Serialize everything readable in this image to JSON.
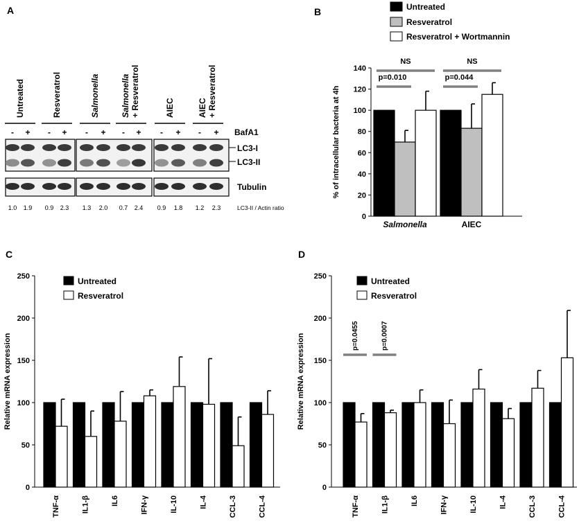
{
  "panel_a": {
    "letter": "A",
    "lanes": [
      "Untreated",
      "Resveratrol",
      "Salmonella",
      "Salmonella|+ Resveratrol",
      "AIEC",
      "AIEC|+ Resveratrol"
    ],
    "bafa1_label": "BafA1",
    "minus": "-",
    "plus": "+",
    "band_labels": [
      "LC3-I",
      "LC3-II"
    ],
    "tubulin_label": "Tubulin",
    "ratios": [
      "1.0",
      "1.9",
      "0.9",
      "2.3",
      "1.3",
      "2.0",
      "0.7",
      "2.4",
      "0.9",
      "1.8",
      "1.2",
      "2.3"
    ],
    "ratio_label": "LC3-II / Actin ratio"
  },
  "chart_data": [
    {
      "id": "B",
      "type": "bar",
      "title": "",
      "ylabel": "% of intracellular bacteria at 4h",
      "xlabel": "",
      "ylim": [
        0,
        140
      ],
      "yticks": [
        0,
        20,
        40,
        60,
        80,
        100,
        120,
        140
      ],
      "categories": [
        "Salmonella",
        "AIEC"
      ],
      "series": [
        {
          "name": "Untreated",
          "color": "#000000",
          "values": [
            100,
            100
          ],
          "errors": [
            0,
            0
          ]
        },
        {
          "name": "Resveratrol",
          "color": "#bfbfbf",
          "values": [
            70,
            83
          ],
          "errors": [
            11,
            23
          ]
        },
        {
          "name": "Resveratrol + Wortmannin",
          "color": "#ffffff",
          "values": [
            100,
            115
          ],
          "errors": [
            18,
            11
          ]
        }
      ],
      "annotations": [
        {
          "group": 0,
          "from": 0,
          "to": 2,
          "text": "NS"
        },
        {
          "group": 0,
          "from": 0,
          "to": 1,
          "text": "p=0.010"
        },
        {
          "group": 1,
          "from": 0,
          "to": 2,
          "text": "NS"
        },
        {
          "group": 1,
          "from": 0,
          "to": 1,
          "text": "p=0.044"
        }
      ]
    },
    {
      "id": "C",
      "type": "bar",
      "title": "",
      "ylabel": "Relative mRNA expression",
      "xlabel": "",
      "ylim": [
        0,
        250
      ],
      "yticks": [
        0,
        50,
        100,
        150,
        200,
        250
      ],
      "categories": [
        "TNF-α",
        "IL1-β",
        "IL6",
        "IFN-γ",
        "IL-10",
        "IL-4",
        "CCL-3",
        "CCL-4"
      ],
      "series": [
        {
          "name": "Untreated",
          "color": "#000000",
          "values": [
            100,
            100,
            100,
            100,
            100,
            100,
            100,
            100
          ],
          "errors": [
            0,
            0,
            0,
            0,
            0,
            0,
            0,
            0
          ]
        },
        {
          "name": "Resveratrol",
          "color": "#ffffff",
          "values": [
            72,
            60,
            78,
            108,
            119,
            98,
            49,
            86
          ],
          "errors": [
            32,
            30,
            35,
            7,
            35,
            54,
            34,
            28
          ]
        }
      ],
      "annotations": []
    },
    {
      "id": "D",
      "type": "bar",
      "title": "",
      "ylabel": "Relative mRNA expression",
      "xlabel": "",
      "ylim": [
        0,
        250
      ],
      "yticks": [
        0,
        50,
        100,
        150,
        200,
        250
      ],
      "categories": [
        "TNF-α",
        "IL1-β",
        "IL6",
        "IFN-γ",
        "IL-10",
        "IL-4",
        "CCL-3",
        "CCL-4"
      ],
      "series": [
        {
          "name": "Untreated",
          "color": "#000000",
          "values": [
            100,
            100,
            100,
            100,
            100,
            100,
            100,
            100
          ],
          "errors": [
            0,
            0,
            0,
            0,
            0,
            0,
            0,
            0
          ]
        },
        {
          "name": "Resveratrol",
          "color": "#ffffff",
          "values": [
            77,
            88,
            100,
            75,
            116,
            81,
            117,
            153
          ],
          "errors": [
            10,
            3,
            15,
            28,
            23,
            12,
            21,
            56
          ]
        }
      ],
      "annotations": [
        {
          "group": 0,
          "from": 0,
          "to": 1,
          "text": "p=0.0455"
        },
        {
          "group": 1,
          "from": 0,
          "to": 1,
          "text": "p=0.0007"
        }
      ]
    }
  ]
}
